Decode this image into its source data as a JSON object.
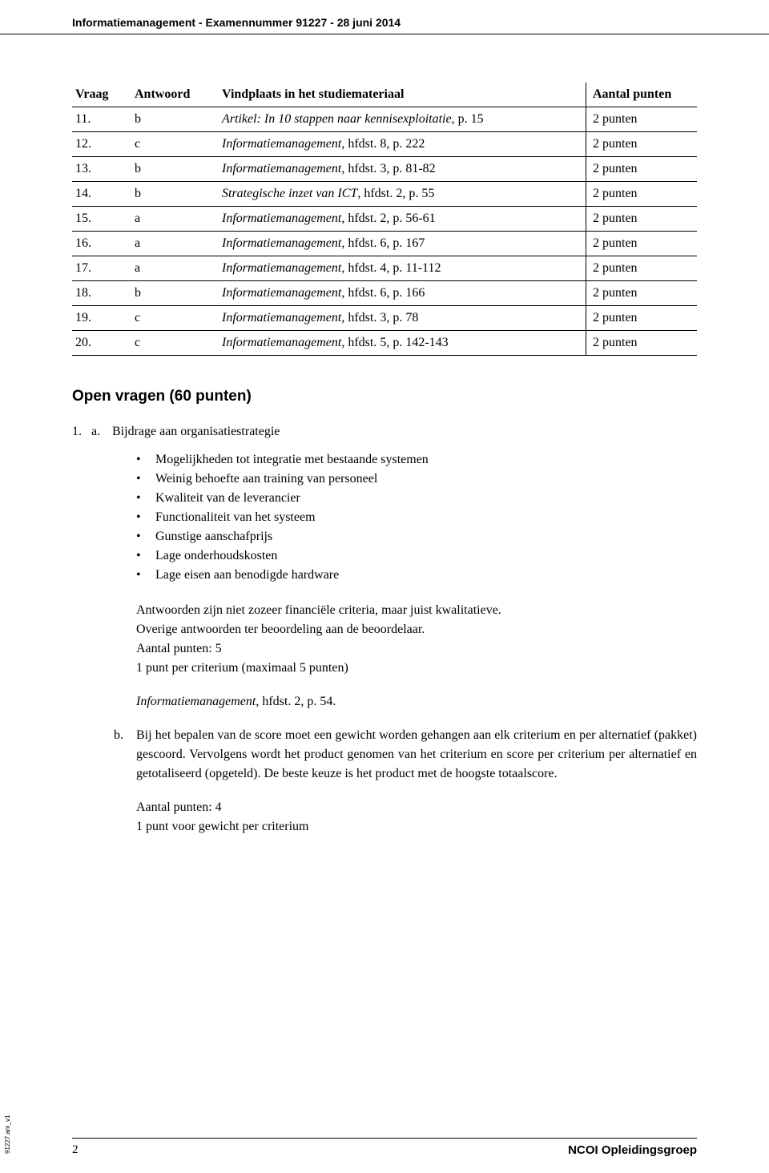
{
  "header": {
    "subject": "Informatiemanagement",
    "separator": " - ",
    "exam_label": "Examennummer 91227",
    "date": "28 juni 2014"
  },
  "table": {
    "columns": [
      "Vraag",
      "Antwoord",
      "Vindplaats in het studiemateriaal",
      "Aantal punten"
    ],
    "rows": [
      {
        "num": "11.",
        "ans": "b",
        "src_italic": "Artikel: In 10 stappen naar kennisexploitatie",
        "src_rest": ", p. 15",
        "pts": "2 punten"
      },
      {
        "num": "12.",
        "ans": "c",
        "src_italic": "Informatiemanagement",
        "src_rest": ", hfdst. 8, p. 222",
        "pts": "2 punten"
      },
      {
        "num": "13.",
        "ans": "b",
        "src_italic": "Informatiemanagement",
        "src_rest": ", hfdst. 3, p. 81-82",
        "pts": "2 punten"
      },
      {
        "num": "14.",
        "ans": "b",
        "src_italic": "Strategische inzet van ICT",
        "src_rest": ", hfdst. 2, p. 55",
        "pts": "2 punten"
      },
      {
        "num": "15.",
        "ans": "a",
        "src_italic": "Informatiemanagement",
        "src_rest": ", hfdst. 2, p. 56-61",
        "pts": "2 punten"
      },
      {
        "num": "16.",
        "ans": "a",
        "src_italic": "Informatiemanagement",
        "src_rest": ", hfdst. 6, p. 167",
        "pts": "2 punten"
      },
      {
        "num": "17.",
        "ans": "a",
        "src_italic": "Informatiemanagement",
        "src_rest": ", hfdst. 4, p. 11-112",
        "pts": "2 punten"
      },
      {
        "num": "18.",
        "ans": "b",
        "src_italic": "Informatiemanagement",
        "src_rest": ", hfdst. 6, p. 166",
        "pts": "2 punten"
      },
      {
        "num": "19.",
        "ans": "c",
        "src_italic": "Informatiemanagement",
        "src_rest": ", hfdst. 3, p. 78",
        "pts": "2 punten"
      },
      {
        "num": "20.",
        "ans": "c",
        "src_italic": "Informatiemanagement",
        "src_rest": ", hfdst. 5, p. 142-143",
        "pts": "2 punten"
      }
    ]
  },
  "open": {
    "heading": "Open vragen (60 punten)",
    "q1": {
      "num": "1.",
      "letter": "a.",
      "title": "Bijdrage aan organisatiestrategie",
      "bullets": [
        "Mogelijkheden tot integratie met bestaande systemen",
        "Weinig behoefte aan training van personeel",
        "Kwaliteit van de leverancier",
        "Functionaliteit van het systeem",
        "Gunstige aanschafprijs",
        "Lage onderhoudskosten",
        "Lage eisen aan benodigde hardware"
      ],
      "para1_l1": "Antwoorden zijn niet zozeer financiële criteria, maar juist kwalitatieve.",
      "para1_l2": "Overige antwoorden ter beoordeling aan de beoordelaar.",
      "para1_l3": "Aantal punten: 5",
      "para1_l4": "1 punt per criterium (maximaal 5 punten)",
      "ref_italic": "Informatiemanagement",
      "ref_rest": ", hfdst. 2, p. 54.",
      "b_letter": "b.",
      "b_text": "Bij het bepalen van de score moet een gewicht worden gehangen aan elk criterium en per alternatief (pakket) gescoord. Vervolgens wordt het product genomen van het criterium en score per criterium per alternatief en getotaliseerd (opgeteld). De beste keuze is het product met de hoogste totaalscore.",
      "b_pts_l1": "Aantal punten: 4",
      "b_pts_l2": "1 punt voor gewicht per criterium"
    }
  },
  "footer": {
    "page": "2",
    "brand": "NCOI Opleidingsgroep",
    "side": "91227.am_v1"
  }
}
